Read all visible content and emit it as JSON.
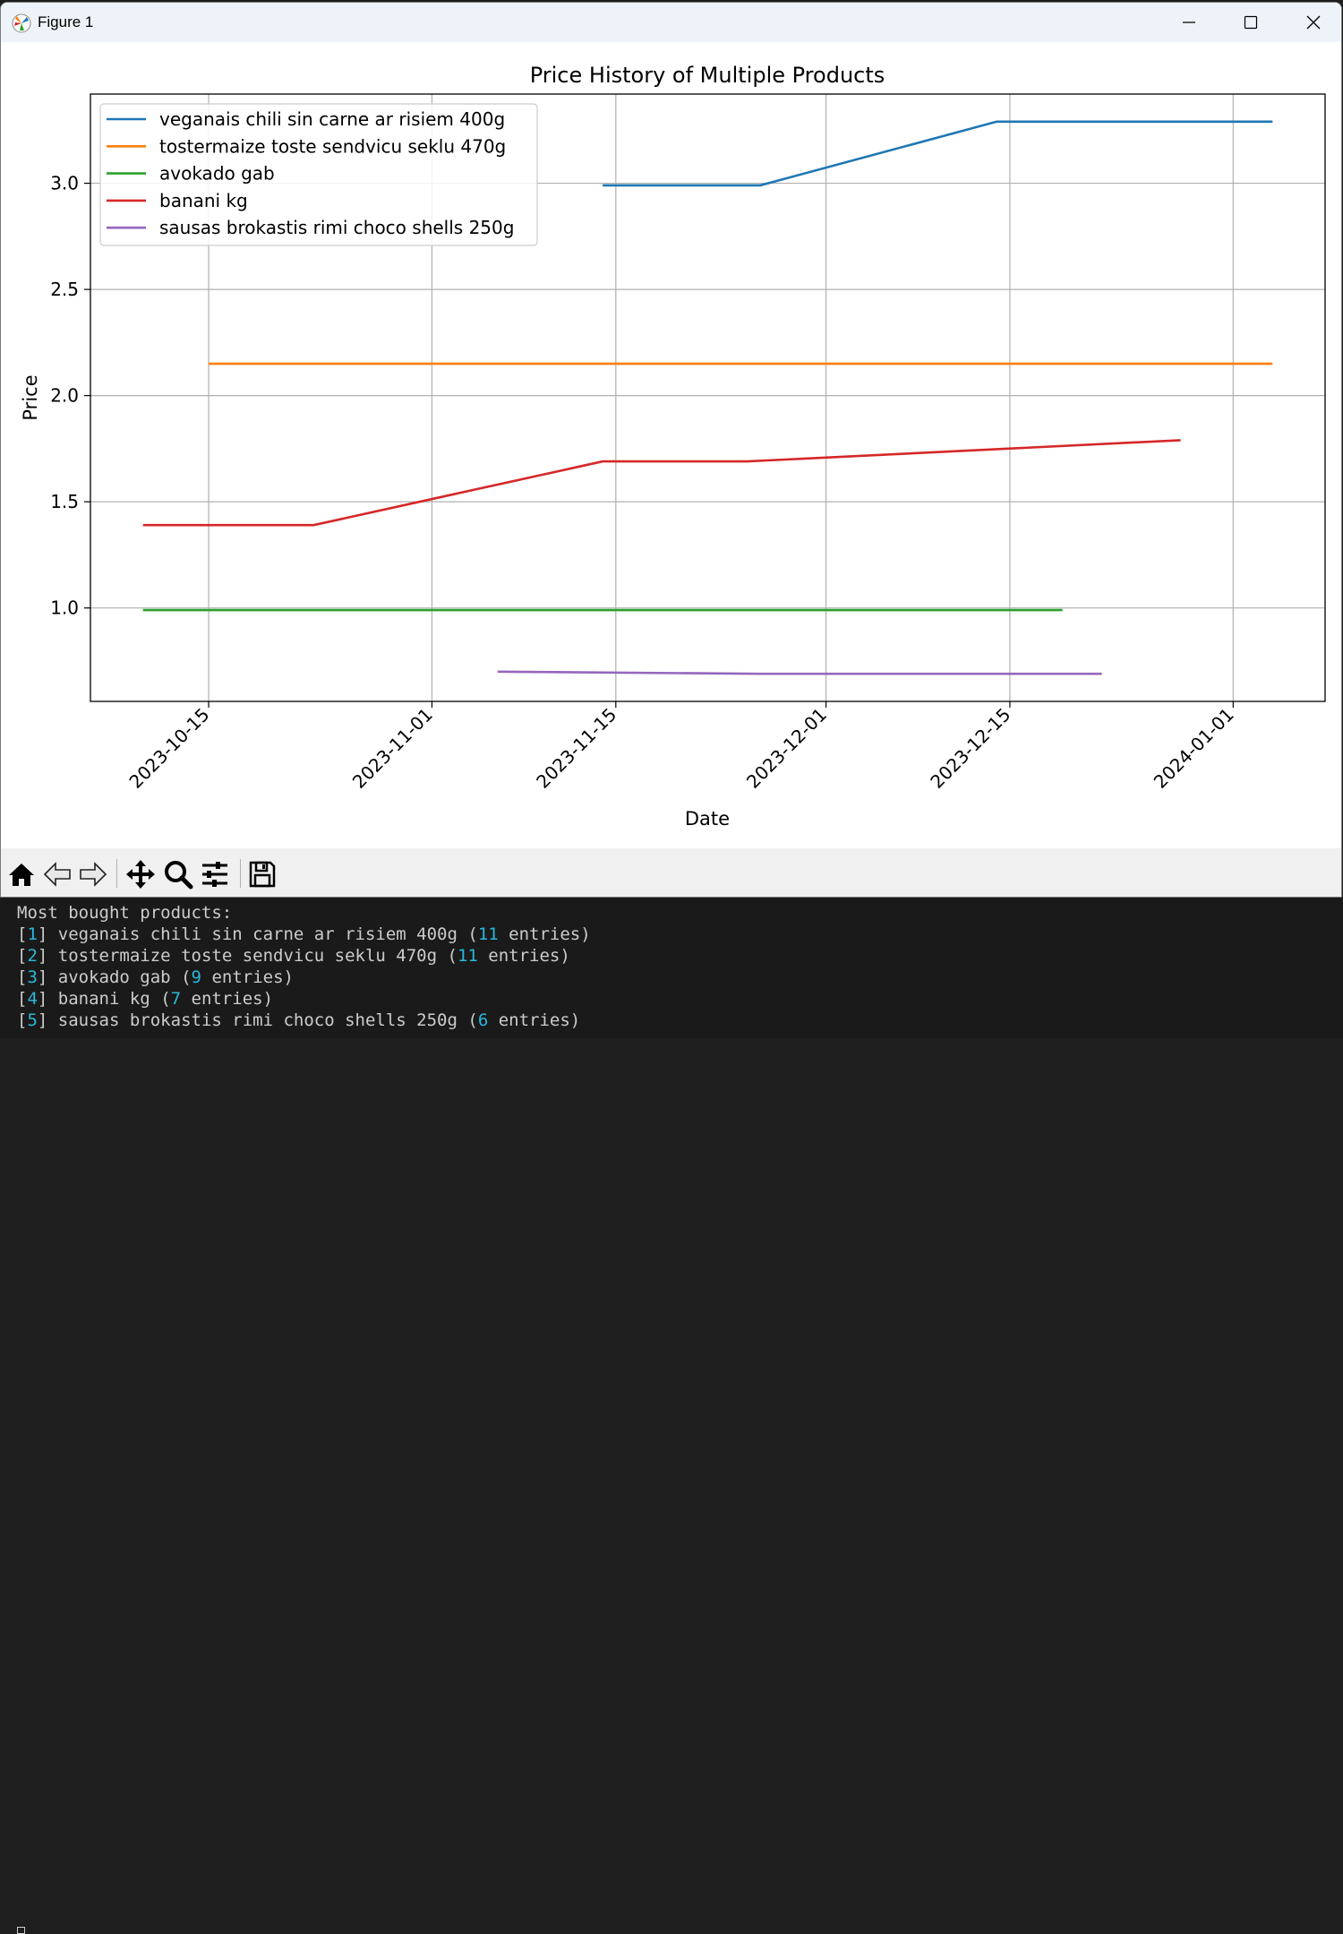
{
  "window": {
    "title": "Figure 1"
  },
  "chart_data": {
    "type": "line",
    "title": "Price History of Multiple Products",
    "xlabel": "Date",
    "ylabel": "Price",
    "x_ticks": [
      "2023-10-15",
      "2023-11-01",
      "2023-11-15",
      "2023-12-01",
      "2023-12-15",
      "2024-01-01"
    ],
    "y_ticks": [
      "1.0",
      "1.5",
      "2.0",
      "2.5",
      "3.0"
    ],
    "xlim": [
      "2023-10-06",
      "2024-01-08"
    ],
    "ylim": [
      0.56,
      3.42
    ],
    "grid": true,
    "legend_position": "upper-left",
    "series": [
      {
        "name": "veganais chili sin carne ar risiem 400g",
        "color": "#1f77b4",
        "points": [
          [
            "2023-11-14",
            2.99
          ],
          [
            "2023-11-26",
            2.99
          ],
          [
            "2023-12-14",
            3.29
          ],
          [
            "2024-01-04",
            3.29
          ]
        ]
      },
      {
        "name": "tostermaize toste sendvicu seklu 470g",
        "color": "#ff7f0e",
        "points": [
          [
            "2023-10-15",
            2.15
          ],
          [
            "2024-01-04",
            2.15
          ]
        ]
      },
      {
        "name": "avokado gab",
        "color": "#2ca02c",
        "points": [
          [
            "2023-10-10",
            0.99
          ],
          [
            "2023-12-19",
            0.99
          ]
        ]
      },
      {
        "name": "banani kg",
        "color": "#d62728",
        "points": [
          [
            "2023-10-10",
            1.39
          ],
          [
            "2023-10-23",
            1.39
          ],
          [
            "2023-11-14",
            1.69
          ],
          [
            "2023-11-25",
            1.69
          ],
          [
            "2023-12-28",
            1.79
          ]
        ]
      },
      {
        "name": "sausas brokastis rimi choco shells 250g",
        "color": "#9467bd",
        "points": [
          [
            "2023-11-06",
            0.7
          ],
          [
            "2023-11-26",
            0.69
          ],
          [
            "2023-12-22",
            0.69
          ]
        ]
      }
    ]
  },
  "toolbar": {
    "buttons": [
      "home-icon",
      "back-arrow-icon",
      "forward-arrow-icon",
      "pan-icon",
      "zoom-icon",
      "configure-subplots-icon",
      "save-icon"
    ]
  },
  "terminal": {
    "heading": "Most bought products:",
    "items": [
      {
        "index": "1",
        "name": "veganais chili sin carne ar risiem 400g",
        "count": "11",
        "suffix": "entries)"
      },
      {
        "index": "2",
        "name": "tostermaize toste sendvicu seklu 470g",
        "count": "11",
        "suffix": "entries)"
      },
      {
        "index": "3",
        "name": "avokado gab",
        "count": "9",
        "suffix": "entries)"
      },
      {
        "index": "4",
        "name": "banani kg",
        "count": "7",
        "suffix": "entries)"
      },
      {
        "index": "5",
        "name": "sausas brokastis rimi choco shells 250g",
        "count": "6",
        "suffix": "entries)"
      }
    ]
  },
  "colors": {
    "terminal_bg": "#1a1a1a",
    "terminal_number": "#29b8db"
  }
}
